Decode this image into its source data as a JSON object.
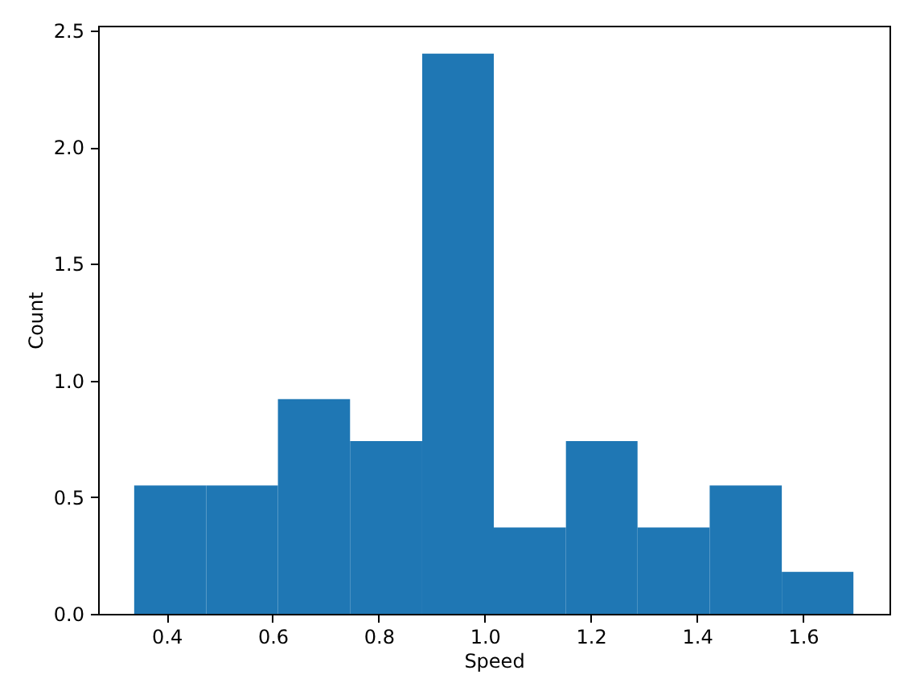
{
  "chart_data": {
    "type": "histogram",
    "xlabel": "Speed",
    "ylabel": "Count",
    "bins": [
      0.339,
      0.475,
      0.61,
      0.746,
      0.882,
      1.017,
      1.153,
      1.288,
      1.424,
      1.56,
      1.695
    ],
    "values": [
      0.55,
      0.55,
      0.92,
      0.74,
      2.4,
      0.37,
      0.74,
      0.37,
      0.55,
      0.18
    ],
    "color": "#1f77b4",
    "xlim": [
      0.271,
      1.763
    ],
    "xticks": [
      0.4,
      0.6,
      0.8,
      {
        "value": 1,
        "label": "1.0"
      },
      1.2,
      1.4,
      1.6
    ],
    "ylim": [
      0,
      2.52
    ],
    "yticks": [
      {
        "value": 0,
        "label": "0.0"
      },
      0.5,
      {
        "value": 1,
        "label": "1.0"
      },
      1.5,
      {
        "value": 2,
        "label": "2.0"
      },
      2.5
    ],
    "grid": false
  }
}
